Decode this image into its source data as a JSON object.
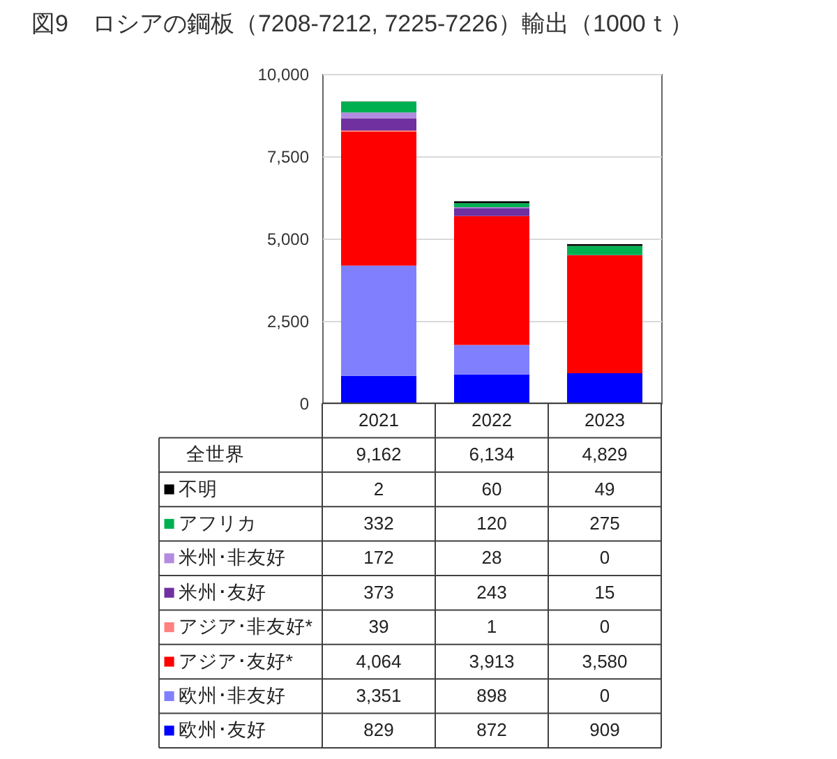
{
  "chart_data": {
    "type": "bar",
    "title": "図9　ロシアの鋼板（7208-7212, 7225-7226）輸出（1000ｔ）",
    "categories": [
      "2021",
      "2022",
      "2023"
    ],
    "series": [
      {
        "name": "欧州･友好",
        "color": "#0000ff",
        "values": [
          829,
          872,
          909
        ],
        "value_labels": [
          "829",
          "872",
          "909"
        ]
      },
      {
        "name": "欧州･非友好",
        "color": "#8080ff",
        "values": [
          3351,
          898,
          0
        ],
        "value_labels": [
          "3,351",
          "898",
          "0"
        ]
      },
      {
        "name": "アジア･友好*",
        "color": "#ff0000",
        "values": [
          4064,
          3913,
          3580
        ],
        "value_labels": [
          "4,064",
          "3,913",
          "3,580"
        ]
      },
      {
        "name": "アジア･非友好*",
        "color": "#ff8080",
        "values": [
          39,
          1,
          0
        ],
        "value_labels": [
          "39",
          "1",
          "0"
        ]
      },
      {
        "name": "米州･友好",
        "color": "#7030a0",
        "values": [
          373,
          243,
          15
        ],
        "value_labels": [
          "373",
          "243",
          "15"
        ]
      },
      {
        "name": "米州･非友好",
        "color": "#b38be0",
        "values": [
          172,
          28,
          0
        ],
        "value_labels": [
          "172",
          "28",
          "0"
        ]
      },
      {
        "name": "アフリカ",
        "color": "#00b050",
        "values": [
          332,
          120,
          275
        ],
        "value_labels": [
          "332",
          "120",
          "275"
        ]
      },
      {
        "name": "不明",
        "color": "#000000",
        "values": [
          2,
          60,
          49
        ],
        "value_labels": [
          "2",
          "60",
          "49"
        ]
      }
    ],
    "stacked": true,
    "ylim": [
      0,
      10000
    ],
    "yticks": [
      0,
      {
        "value": 2500,
        "label": "2,500"
      },
      {
        "value": 5000,
        "label": "5,000"
      },
      {
        "value": 7500,
        "label": "7,500"
      },
      {
        "value": 10000,
        "label": "10,000"
      }
    ],
    "grid": "y",
    "legend": "bottom",
    "totals": [
      "9,162",
      "6,134",
      "4,829"
    ],
    "annotations": [
      "全世界"
    ]
  }
}
